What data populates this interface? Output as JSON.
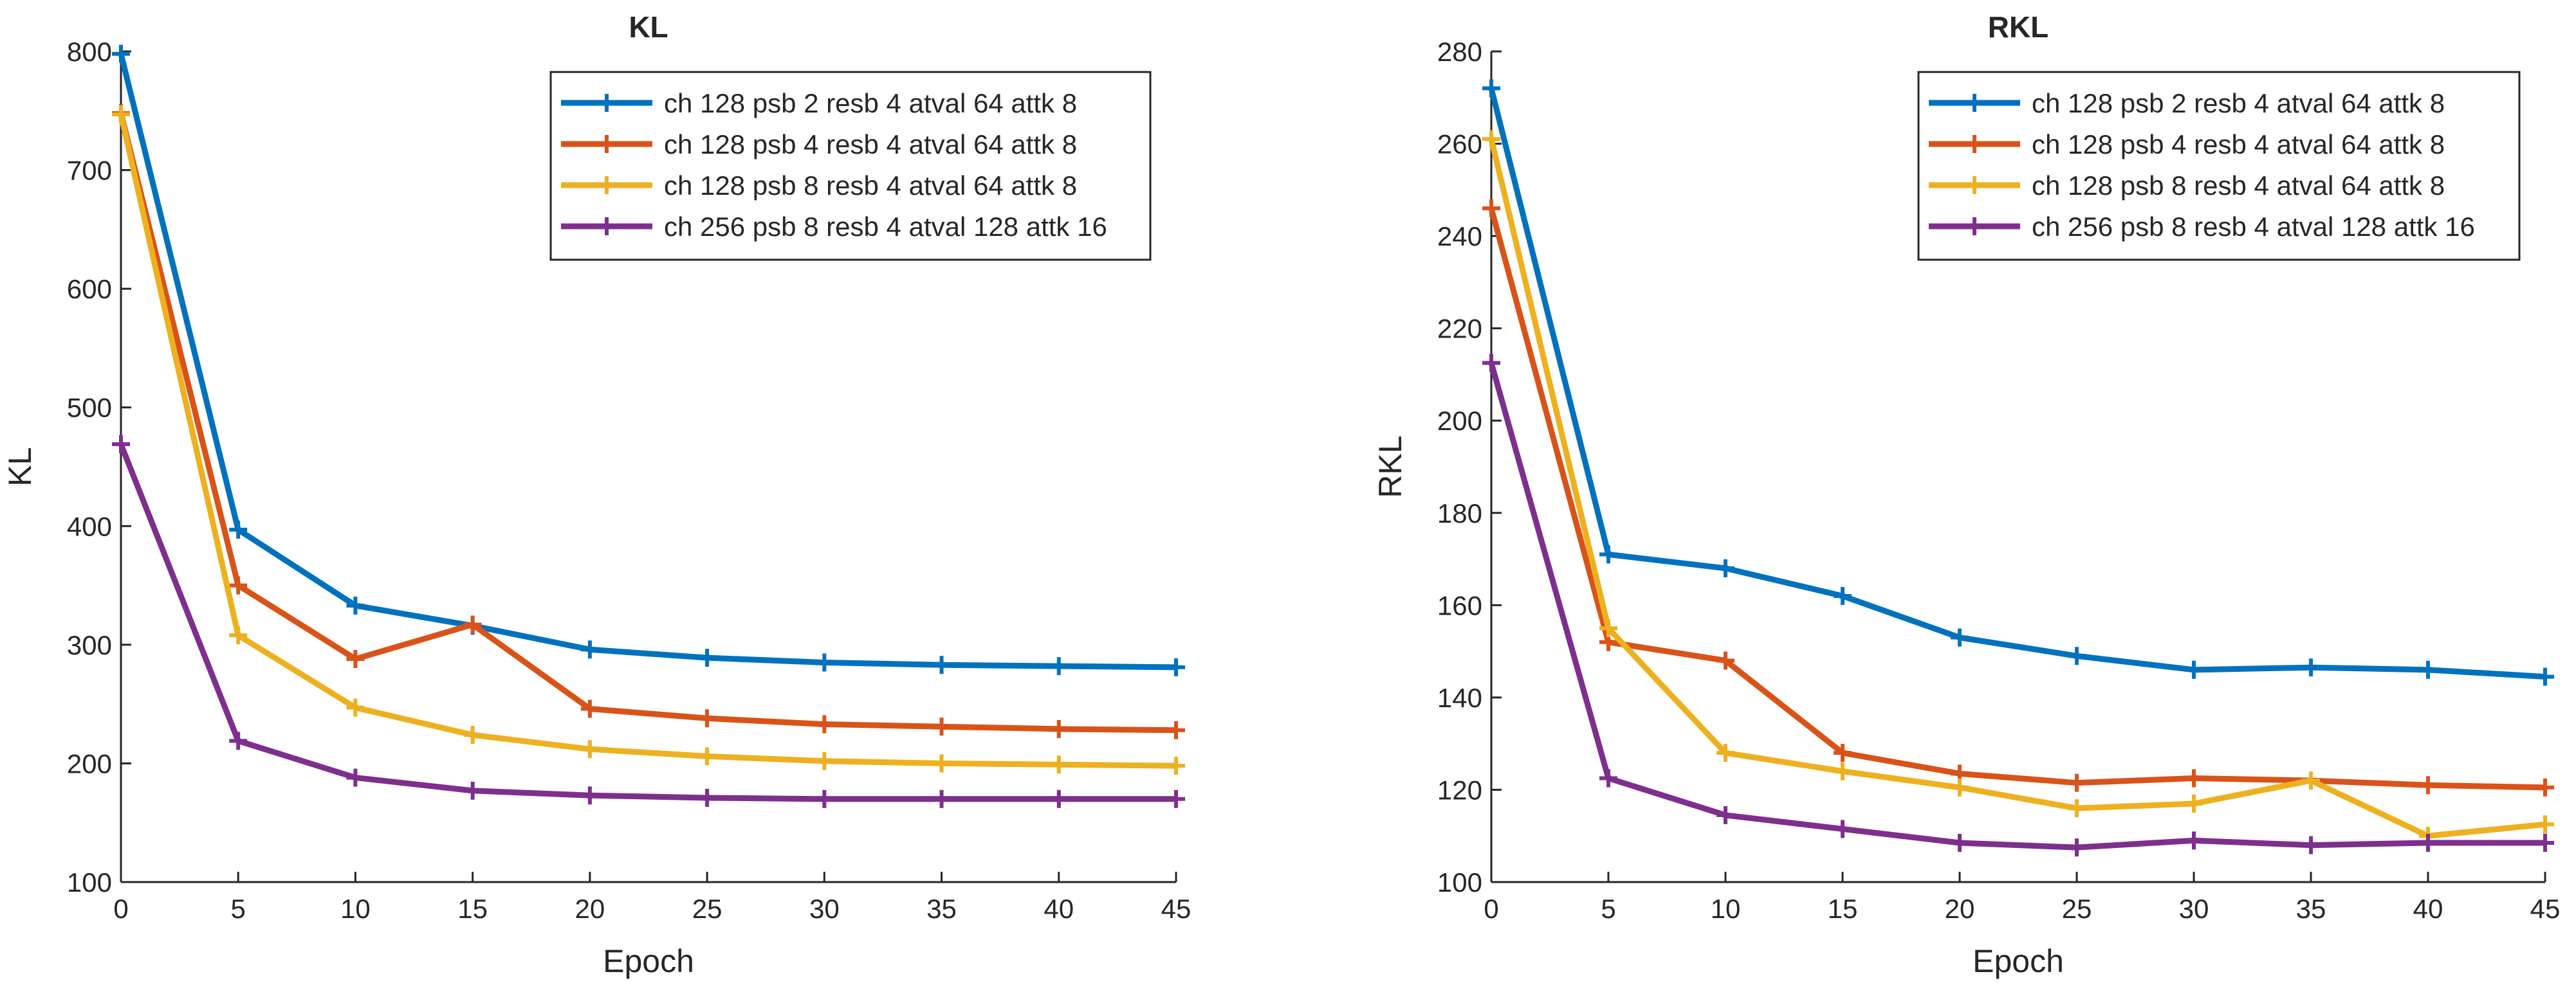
{
  "chart_data": [
    {
      "type": "line",
      "title": "KL",
      "xlabel": "Epoch",
      "ylabel": "KL",
      "x": [
        0,
        5,
        10,
        15,
        20,
        25,
        30,
        35,
        40,
        45
      ],
      "xlim": [
        0,
        45
      ],
      "ylim": [
        100,
        800
      ],
      "xticks": [
        "0",
        "5",
        "10",
        "15",
        "20",
        "25",
        "30",
        "35",
        "40",
        "45"
      ],
      "yticks": [
        "100",
        "200",
        "300",
        "400",
        "500",
        "600",
        "700",
        "800"
      ],
      "grid": false,
      "legend_position": "top-right",
      "series": [
        {
          "name": "ch 128 psb 2 resb 4 atval 64 attk 8",
          "color": "#0072BD",
          "values": [
            798,
            397,
            333,
            316,
            296,
            289,
            285,
            283,
            282,
            281
          ]
        },
        {
          "name": "ch 128 psb 4 resb 4 atval 64 attk 8",
          "color": "#D95319",
          "values": [
            748,
            350,
            288,
            317,
            246,
            238,
            233,
            231,
            229,
            228
          ]
        },
        {
          "name": "ch 128 psb 8 resb 4 atval 64 attk 8",
          "color": "#EDB120",
          "values": [
            747,
            308,
            247,
            224,
            212,
            206,
            202,
            200,
            199,
            198
          ]
        },
        {
          "name": "ch 256 psb 8 resb 4 atval 128 attk 16",
          "color": "#7E2F8E",
          "values": [
            469,
            219,
            188,
            177,
            173,
            171,
            170,
            170,
            170,
            170
          ]
        }
      ]
    },
    {
      "type": "line",
      "title": "RKL",
      "xlabel": "Epoch",
      "ylabel": "RKL",
      "x": [
        0,
        5,
        10,
        15,
        20,
        25,
        30,
        35,
        40,
        45
      ],
      "xlim": [
        0,
        45
      ],
      "ylim": [
        100,
        280
      ],
      "xticks": [
        "0",
        "5",
        "10",
        "15",
        "20",
        "25",
        "30",
        "35",
        "40",
        "45"
      ],
      "yticks": [
        "100",
        "120",
        "140",
        "160",
        "180",
        "200",
        "220",
        "240",
        "260",
        "280"
      ],
      "grid": false,
      "legend_position": "top-right",
      "series": [
        {
          "name": "ch 128 psb 2 resb 4 atval 64 attk 8",
          "color": "#0072BD",
          "values": [
            272,
            171,
            168,
            162,
            153,
            149,
            146,
            146.5,
            146,
            144.5
          ]
        },
        {
          "name": "ch 128 psb 4 resb 4 atval 64 attk 8",
          "color": "#D95319",
          "values": [
            246,
            152,
            148,
            128,
            123.5,
            121.5,
            122.5,
            122,
            121,
            120.5
          ]
        },
        {
          "name": "ch 128 psb 8 resb 4 atval 64 attk 8",
          "color": "#EDB120",
          "values": [
            261,
            155,
            128,
            124,
            120.5,
            116,
            117,
            122,
            110,
            112.5
          ]
        },
        {
          "name": "ch 256 psb 8 resb 4 atval 128 attk 16",
          "color": "#7E2F8E",
          "values": [
            212.5,
            122.5,
            114.5,
            111.5,
            108.5,
            107.5,
            109,
            108,
            108.5,
            108.5
          ]
        }
      ]
    }
  ]
}
